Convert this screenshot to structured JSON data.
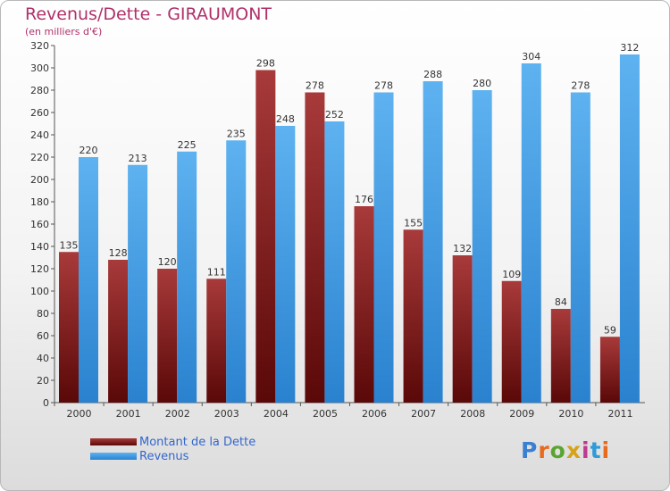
{
  "header": {
    "title": "Revenus/Dette - GIRAUMONT",
    "subtitle": "(en milliers d'€)"
  },
  "logo": {
    "text": "Proxiti",
    "colors": [
      "#3a7fd0",
      "#e86a1c",
      "#5aa532",
      "#d6a318",
      "#c03a8e",
      "#2f9bd8",
      "#e86a1c"
    ]
  },
  "legend": {
    "items": [
      {
        "label": "Montant de la Dette",
        "color": "#7a1a1a"
      },
      {
        "label": "Revenus",
        "color": "#4a9fe0"
      }
    ]
  },
  "chart_data": {
    "type": "bar",
    "title": "Revenus/Dette - GIRAUMONT",
    "subtitle": "(en milliers d'€)",
    "xlabel": "",
    "ylabel": "",
    "categories": [
      "2000",
      "2001",
      "2002",
      "2003",
      "2004",
      "2005",
      "2006",
      "2007",
      "2008",
      "2009",
      "2010",
      "2011"
    ],
    "series": [
      {
        "name": "Montant de la Dette",
        "color": "#7a1a1a",
        "values": [
          135,
          128,
          120,
          111,
          298,
          278,
          176,
          155,
          132,
          109,
          84,
          59
        ]
      },
      {
        "name": "Revenus",
        "color": "#4a9fe0",
        "values": [
          220,
          213,
          225,
          235,
          248,
          252,
          278,
          288,
          280,
          304,
          278,
          312
        ]
      }
    ],
    "ylim": [
      0,
      320
    ],
    "yticks": [
      0,
      20,
      40,
      60,
      80,
      100,
      120,
      140,
      160,
      180,
      200,
      220,
      240,
      260,
      280,
      300,
      320
    ],
    "grid": false,
    "legend_position": "bottom-left"
  }
}
